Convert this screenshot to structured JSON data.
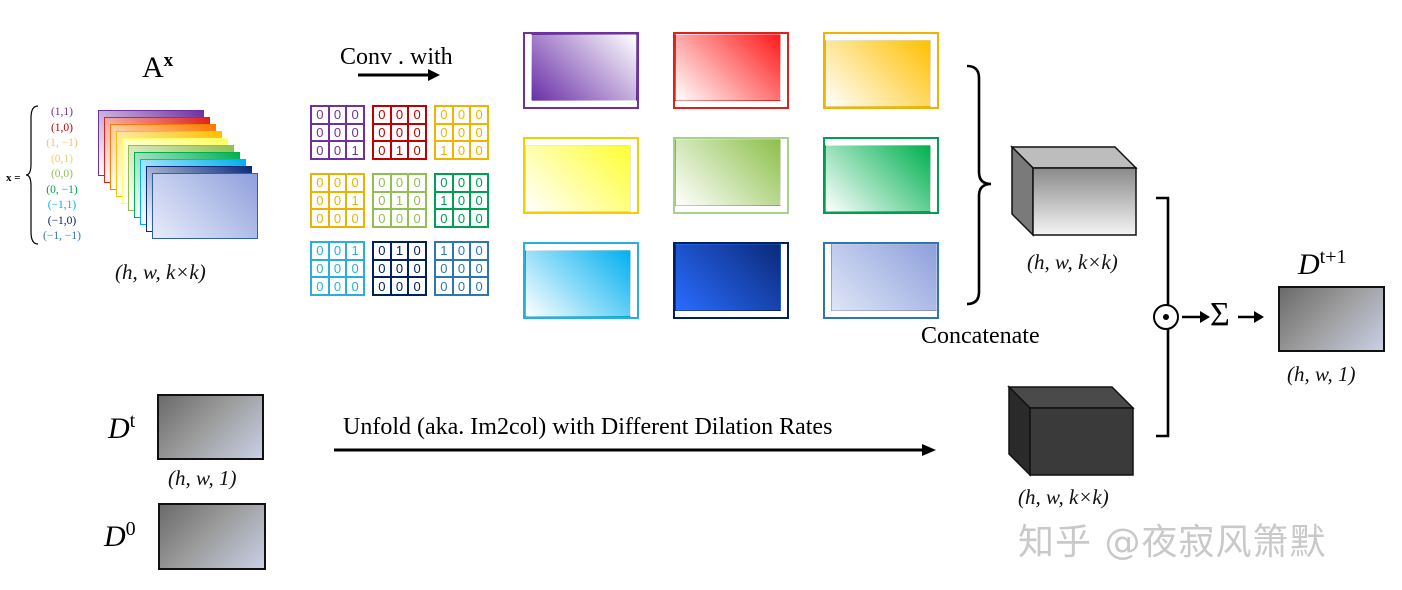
{
  "title_ax": "A",
  "title_ax_sup": "x",
  "x_equals_label": "x =",
  "offsets": [
    {
      "text": "(1,1)",
      "color": "#7030a0"
    },
    {
      "text": "(1,0)",
      "color": "#c00000"
    },
    {
      "text": "(1, −1)",
      "color": "#f4c06f"
    },
    {
      "text": "(0,1)",
      "color": "#f2d06b"
    },
    {
      "text": "(0,0)",
      "color": "#92c050"
    },
    {
      "text": "(0, −1)",
      "color": "#00a050"
    },
    {
      "text": "(−1,1)",
      "color": "#00b0f0"
    },
    {
      "text": "(−1,0)",
      "color": "#002060"
    },
    {
      "text": "(−1, −1)",
      "color": "#2e75b6"
    }
  ],
  "ax_dim": "(h, w, k×k)",
  "conv_label": "Conv . with",
  "kernels": [
    {
      "color": "#7030a0",
      "values": [
        "0",
        "0",
        "0",
        "0",
        "0",
        "0",
        "0",
        "0",
        "1"
      ]
    },
    {
      "color": "#c00000",
      "values": [
        "0",
        "0",
        "0",
        "0",
        "0",
        "0",
        "0",
        "1",
        "0"
      ]
    },
    {
      "color": "#f0b400",
      "values": [
        "0",
        "0",
        "0",
        "0",
        "0",
        "0",
        "1",
        "0",
        "0"
      ]
    },
    {
      "color": "#e8b400",
      "values": [
        "0",
        "0",
        "0",
        "0",
        "0",
        "1",
        "0",
        "0",
        "0"
      ]
    },
    {
      "color": "#92c050",
      "values": [
        "0",
        "0",
        "0",
        "0",
        "1",
        "0",
        "0",
        "0",
        "0"
      ]
    },
    {
      "color": "#00a050",
      "values": [
        "0",
        "0",
        "0",
        "1",
        "0",
        "0",
        "0",
        "0",
        "0"
      ]
    },
    {
      "color": "#2aaee0",
      "values": [
        "0",
        "0",
        "1",
        "0",
        "0",
        "0",
        "0",
        "0",
        "0"
      ]
    },
    {
      "color": "#002060",
      "values": [
        "0",
        "1",
        "0",
        "0",
        "0",
        "0",
        "0",
        "0",
        "0"
      ]
    },
    {
      "color": "#2e75b6",
      "values": [
        "1",
        "0",
        "0",
        "0",
        "0",
        "0",
        "0",
        "0",
        "0"
      ]
    }
  ],
  "shifted_maps": [
    {
      "border": "#7030a0",
      "from": "#6a2fa8",
      "to": "#ffffff",
      "dir": "45deg"
    },
    {
      "border": "#e0201a",
      "from": "#ff1a1a",
      "to": "#ffffff",
      "dir": "225deg"
    },
    {
      "border": "#f0b400",
      "from": "#ffc000",
      "to": "#ffffff",
      "dir": "225deg"
    },
    {
      "border": "#f0d000",
      "from": "#ffff33",
      "to": "#ffffff",
      "dir": "225deg"
    },
    {
      "border": "#a9d18e",
      "from": "#8cc04a",
      "to": "#ffffff",
      "dir": "225deg"
    },
    {
      "border": "#00a050",
      "from": "#00b050",
      "to": "#ffffff",
      "dir": "225deg"
    },
    {
      "border": "#2aaee0",
      "from": "#00b0f0",
      "to": "#ffffff",
      "dir": "225deg"
    },
    {
      "border": "#002060",
      "from": "#0a2a7a",
      "to": "#2a6cff",
      "dir": "225deg"
    },
    {
      "border": "#2e75b6",
      "from": "#8ea0dc",
      "to": "#dfe5f7",
      "dir": "225deg"
    }
  ],
  "concatenate_label": "Concatenate",
  "cube_top_dim": "(h, w, k×k)",
  "cube_bottom_dim": "(h, w, k×k)",
  "dt_label": "D",
  "dt_sup": "t",
  "dt_dim": "(h, w, 1)",
  "d0_label": "D",
  "d0_sup": "0",
  "unfold_label": "Unfold (aka. Im2col) with Different Dilation Rates",
  "odot_symbol": "⊙",
  "sum_symbol": "Σ",
  "out_label": "D",
  "out_sup": "t+1",
  "out_dim": "(h, w, 1)",
  "watermark": "知乎 @夜寂风箫默",
  "stack_colors": [
    "#7030a0",
    "#e0201a",
    "#ff7a00",
    "#ffc000",
    "#ffff66",
    "#92c050",
    "#00b050",
    "#00b0f0",
    "#0a2a7a",
    "#c5d0f0"
  ]
}
